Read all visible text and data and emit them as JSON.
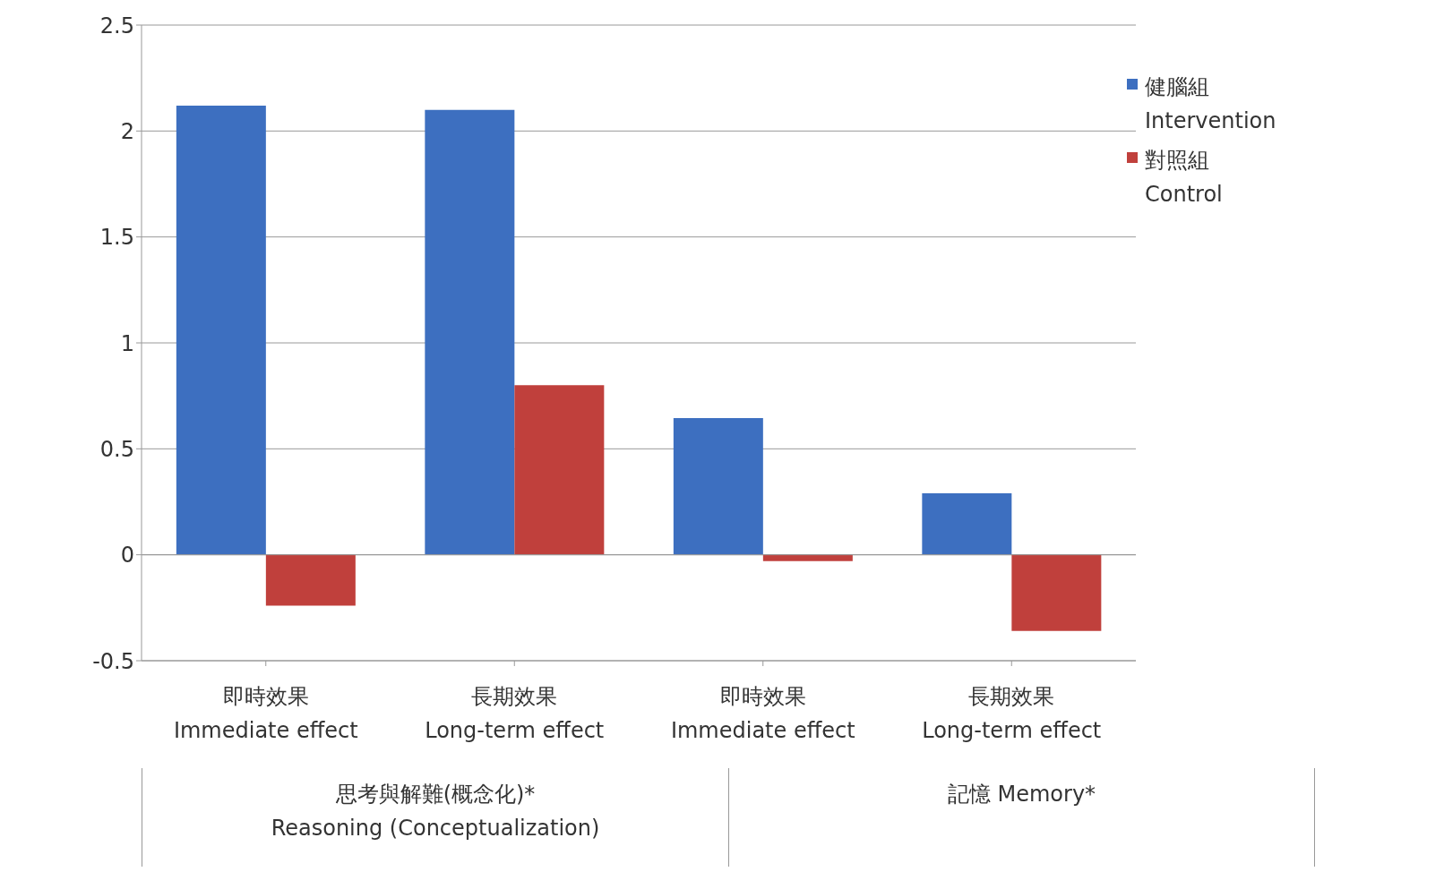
{
  "chart_data": {
    "type": "bar",
    "categories": [
      "即時效果\nImmediate effect",
      "長期效果\nLong-term effect",
      "即時效果\nImmediate effect",
      "長期效果\nLong-term effect"
    ],
    "series": [
      {
        "name": "健腦組\nIntervention",
        "color": "#3d6fc0",
        "values": [
          2.12,
          2.1,
          0.645,
          0.29
        ]
      },
      {
        "name": "對照組\nControl",
        "color": "#c0403c",
        "values": [
          -0.24,
          0.8,
          -0.03,
          -0.36
        ]
      }
    ],
    "annotations": [
      "思考與解難(概念化)*\nReasoning (Conceptualization)",
      "記憶 Memory*"
    ],
    "ylim": [
      -0.5,
      2.5
    ],
    "yticks": [
      -0.5,
      0,
      0.5,
      1,
      1.5,
      2,
      2.5
    ],
    "grid": "y",
    "legend": "top right"
  }
}
